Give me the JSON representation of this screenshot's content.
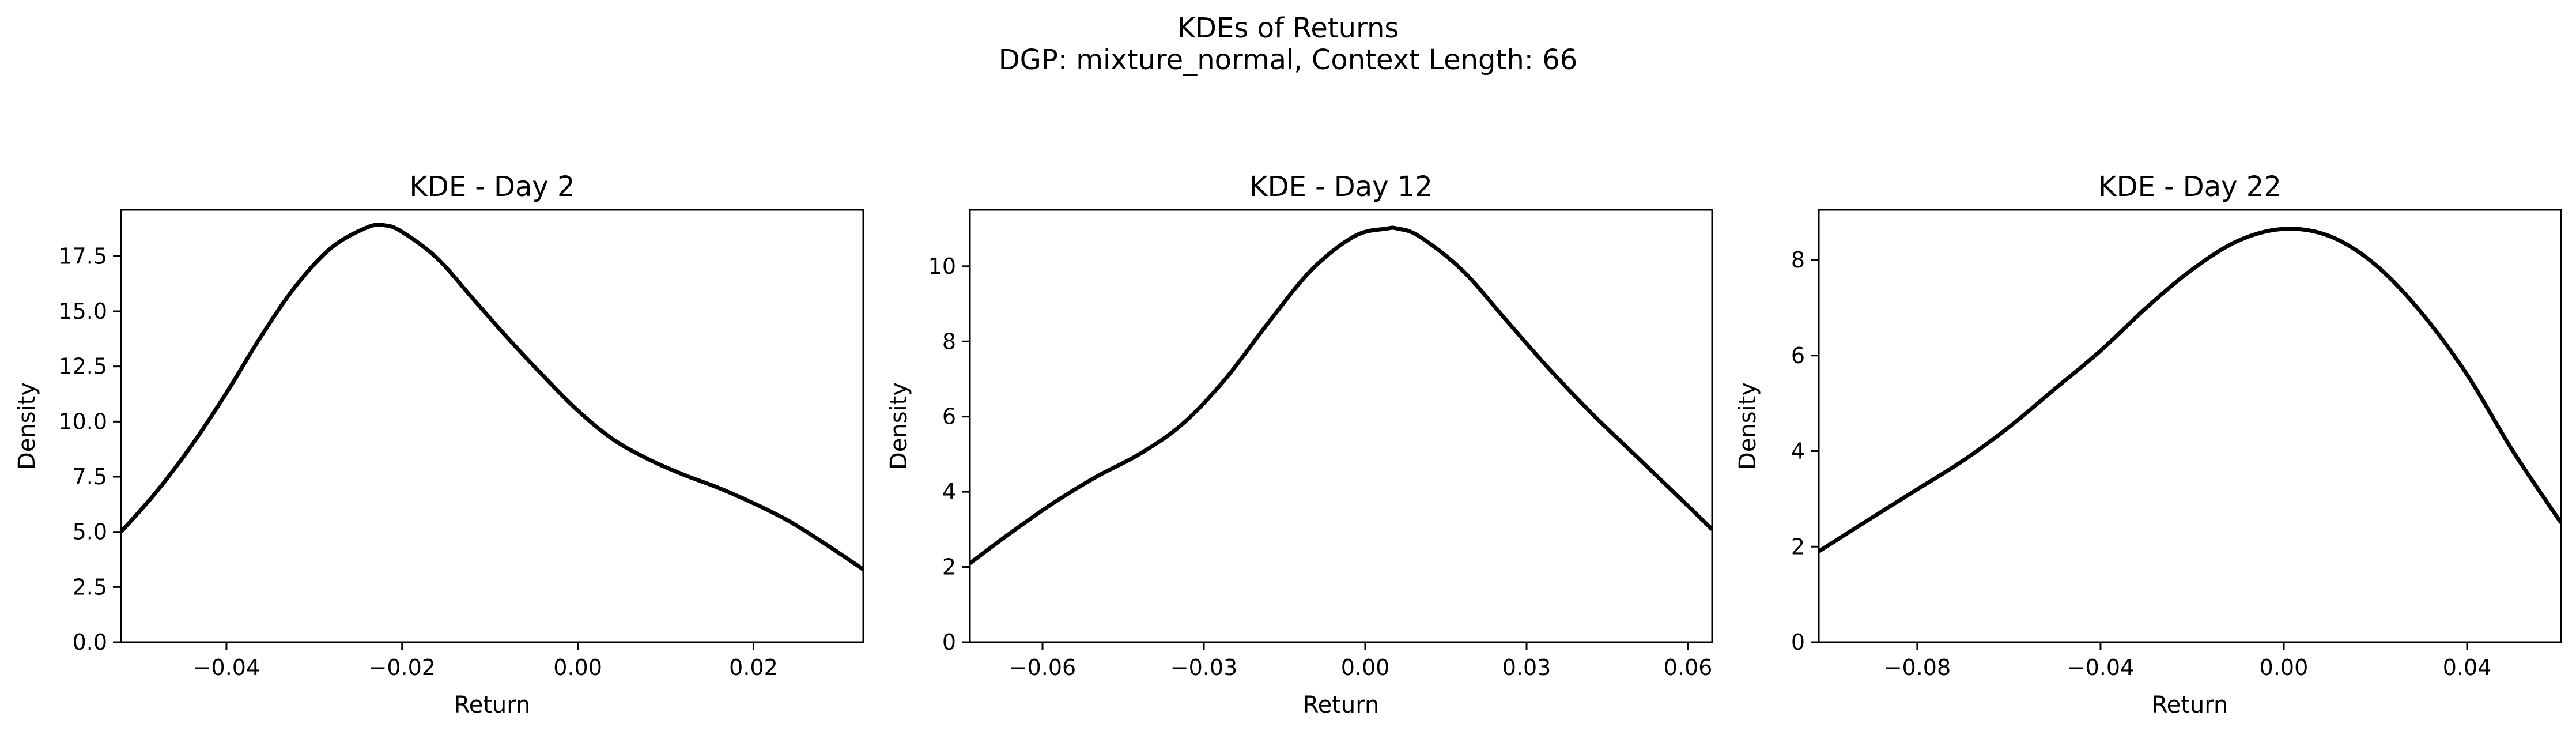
{
  "suptitle": [
    "KDEs of Returns",
    "DGP: mixture_normal, Context Length: 66"
  ],
  "chart_data": [
    {
      "type": "line",
      "title": "KDE - Day 2",
      "xlabel": "Return",
      "ylabel": "Density",
      "xlim": [
        -0.052,
        0.0325
      ],
      "ylim": [
        0,
        19.6
      ],
      "xticks": [
        -0.04,
        -0.02,
        0.0,
        0.02
      ],
      "xtick_labels": [
        "−0.04",
        "−0.02",
        "0.00",
        "0.02"
      ],
      "yticks": [
        0,
        2.5,
        5,
        7.5,
        10,
        12.5,
        15,
        17.5
      ],
      "ytick_labels": [
        "0.0",
        "2.5",
        "5.0",
        "7.5",
        "10.0",
        "12.5",
        "15.0",
        "17.5"
      ],
      "grid": false,
      "color": "#000000",
      "x": [
        -0.052,
        -0.048,
        -0.044,
        -0.04,
        -0.036,
        -0.032,
        -0.028,
        -0.024,
        -0.022,
        -0.02,
        -0.016,
        -0.012,
        -0.008,
        -0.004,
        0.0,
        0.004,
        0.008,
        0.012,
        0.016,
        0.02,
        0.024,
        0.028,
        0.0325
      ],
      "y": [
        5.0,
        6.8,
        8.9,
        11.3,
        13.9,
        16.2,
        17.9,
        18.8,
        18.9,
        18.6,
        17.4,
        15.6,
        13.8,
        12.1,
        10.5,
        9.2,
        8.3,
        7.6,
        7.0,
        6.3,
        5.5,
        4.5,
        3.3
      ]
    },
    {
      "type": "line",
      "title": "KDE - Day 12",
      "xlabel": "Return",
      "ylabel": "Density",
      "xlim": [
        -0.0735,
        0.0645
      ],
      "ylim": [
        0,
        11.5
      ],
      "xticks": [
        -0.06,
        -0.03,
        0.0,
        0.03,
        0.06
      ],
      "xtick_labels": [
        "−0.06",
        "−0.03",
        "0.00",
        "0.03",
        "0.06"
      ],
      "yticks": [
        0,
        2,
        4,
        6,
        8,
        10
      ],
      "ytick_labels": [
        "0",
        "2",
        "4",
        "6",
        "8",
        "10"
      ],
      "grid": false,
      "color": "#000000",
      "x": [
        -0.0735,
        -0.066,
        -0.058,
        -0.05,
        -0.042,
        -0.034,
        -0.026,
        -0.018,
        -0.01,
        -0.002,
        0.004,
        0.006,
        0.01,
        0.018,
        0.026,
        0.034,
        0.042,
        0.05,
        0.058,
        0.0645
      ],
      "y": [
        2.1,
        2.9,
        3.7,
        4.4,
        5.0,
        5.8,
        7.0,
        8.5,
        9.9,
        10.8,
        11.0,
        11.0,
        10.8,
        9.9,
        8.6,
        7.3,
        6.1,
        5.0,
        3.9,
        3.0
      ]
    },
    {
      "type": "line",
      "title": "KDE - Day 22",
      "xlabel": "Return",
      "ylabel": "Density",
      "xlim": [
        -0.1015,
        0.0605
      ],
      "ylim": [
        0,
        9.05
      ],
      "xticks": [
        -0.08,
        -0.04,
        0.0,
        0.04
      ],
      "xtick_labels": [
        "−0.08",
        "−0.04",
        "0.00",
        "0.04"
      ],
      "yticks": [
        0,
        2,
        4,
        6,
        8
      ],
      "ytick_labels": [
        "0",
        "2",
        "4",
        "6",
        "8"
      ],
      "grid": false,
      "color": "#000000",
      "x": [
        -0.1015,
        -0.09,
        -0.08,
        -0.07,
        -0.06,
        -0.05,
        -0.04,
        -0.03,
        -0.02,
        -0.01,
        0.0,
        0.01,
        0.02,
        0.03,
        0.04,
        0.05,
        0.0605
      ],
      "y": [
        1.9,
        2.6,
        3.2,
        3.8,
        4.5,
        5.3,
        6.1,
        7.0,
        7.8,
        8.4,
        8.65,
        8.5,
        7.9,
        6.9,
        5.6,
        4.0,
        2.5
      ]
    }
  ]
}
